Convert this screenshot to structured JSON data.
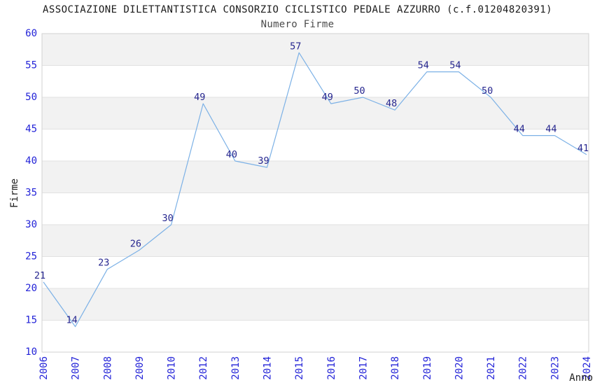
{
  "page": {
    "title": "ASSOCIAZIONE DILETTANTISTICA CONSORZIO CICLISTICO PEDALE AZZURRO (c.f.01204820391)",
    "subtitle": "Numero Firme"
  },
  "chart_data": {
    "type": "line",
    "title": "ASSOCIAZIONE DILETTANTISTICA CONSORZIO CICLISTICO PEDALE AZZURRO (c.f.01204820391)",
    "subtitle": "Numero Firme",
    "xlabel": "Anno",
    "ylabel": "Firme",
    "categories": [
      "2006",
      "2007",
      "2008",
      "2009",
      "2010",
      "2012",
      "2013",
      "2014",
      "2015",
      "2016",
      "2017",
      "2018",
      "2019",
      "2020",
      "2021",
      "2022",
      "2023",
      "2024"
    ],
    "values": [
      21,
      14,
      23,
      26,
      30,
      49,
      40,
      39,
      57,
      49,
      50,
      48,
      54,
      54,
      50,
      44,
      44,
      41
    ],
    "ylim": [
      10,
      60
    ],
    "ytick_step": 5,
    "grid": "horizontal",
    "bands": "alternating",
    "legend": "none",
    "point_labels": true,
    "colors": {
      "line": "#7cb1e6",
      "point_label": "#26268f",
      "tick_label": "#2323d8",
      "band": "#f2f2f2",
      "grid": "#e2e2e2",
      "border": "#d2d2d2",
      "title": "#1a1a1a",
      "subtitle": "#4b4b4b",
      "axis_title": "#1f1f1f",
      "background": "#ffffff"
    }
  }
}
